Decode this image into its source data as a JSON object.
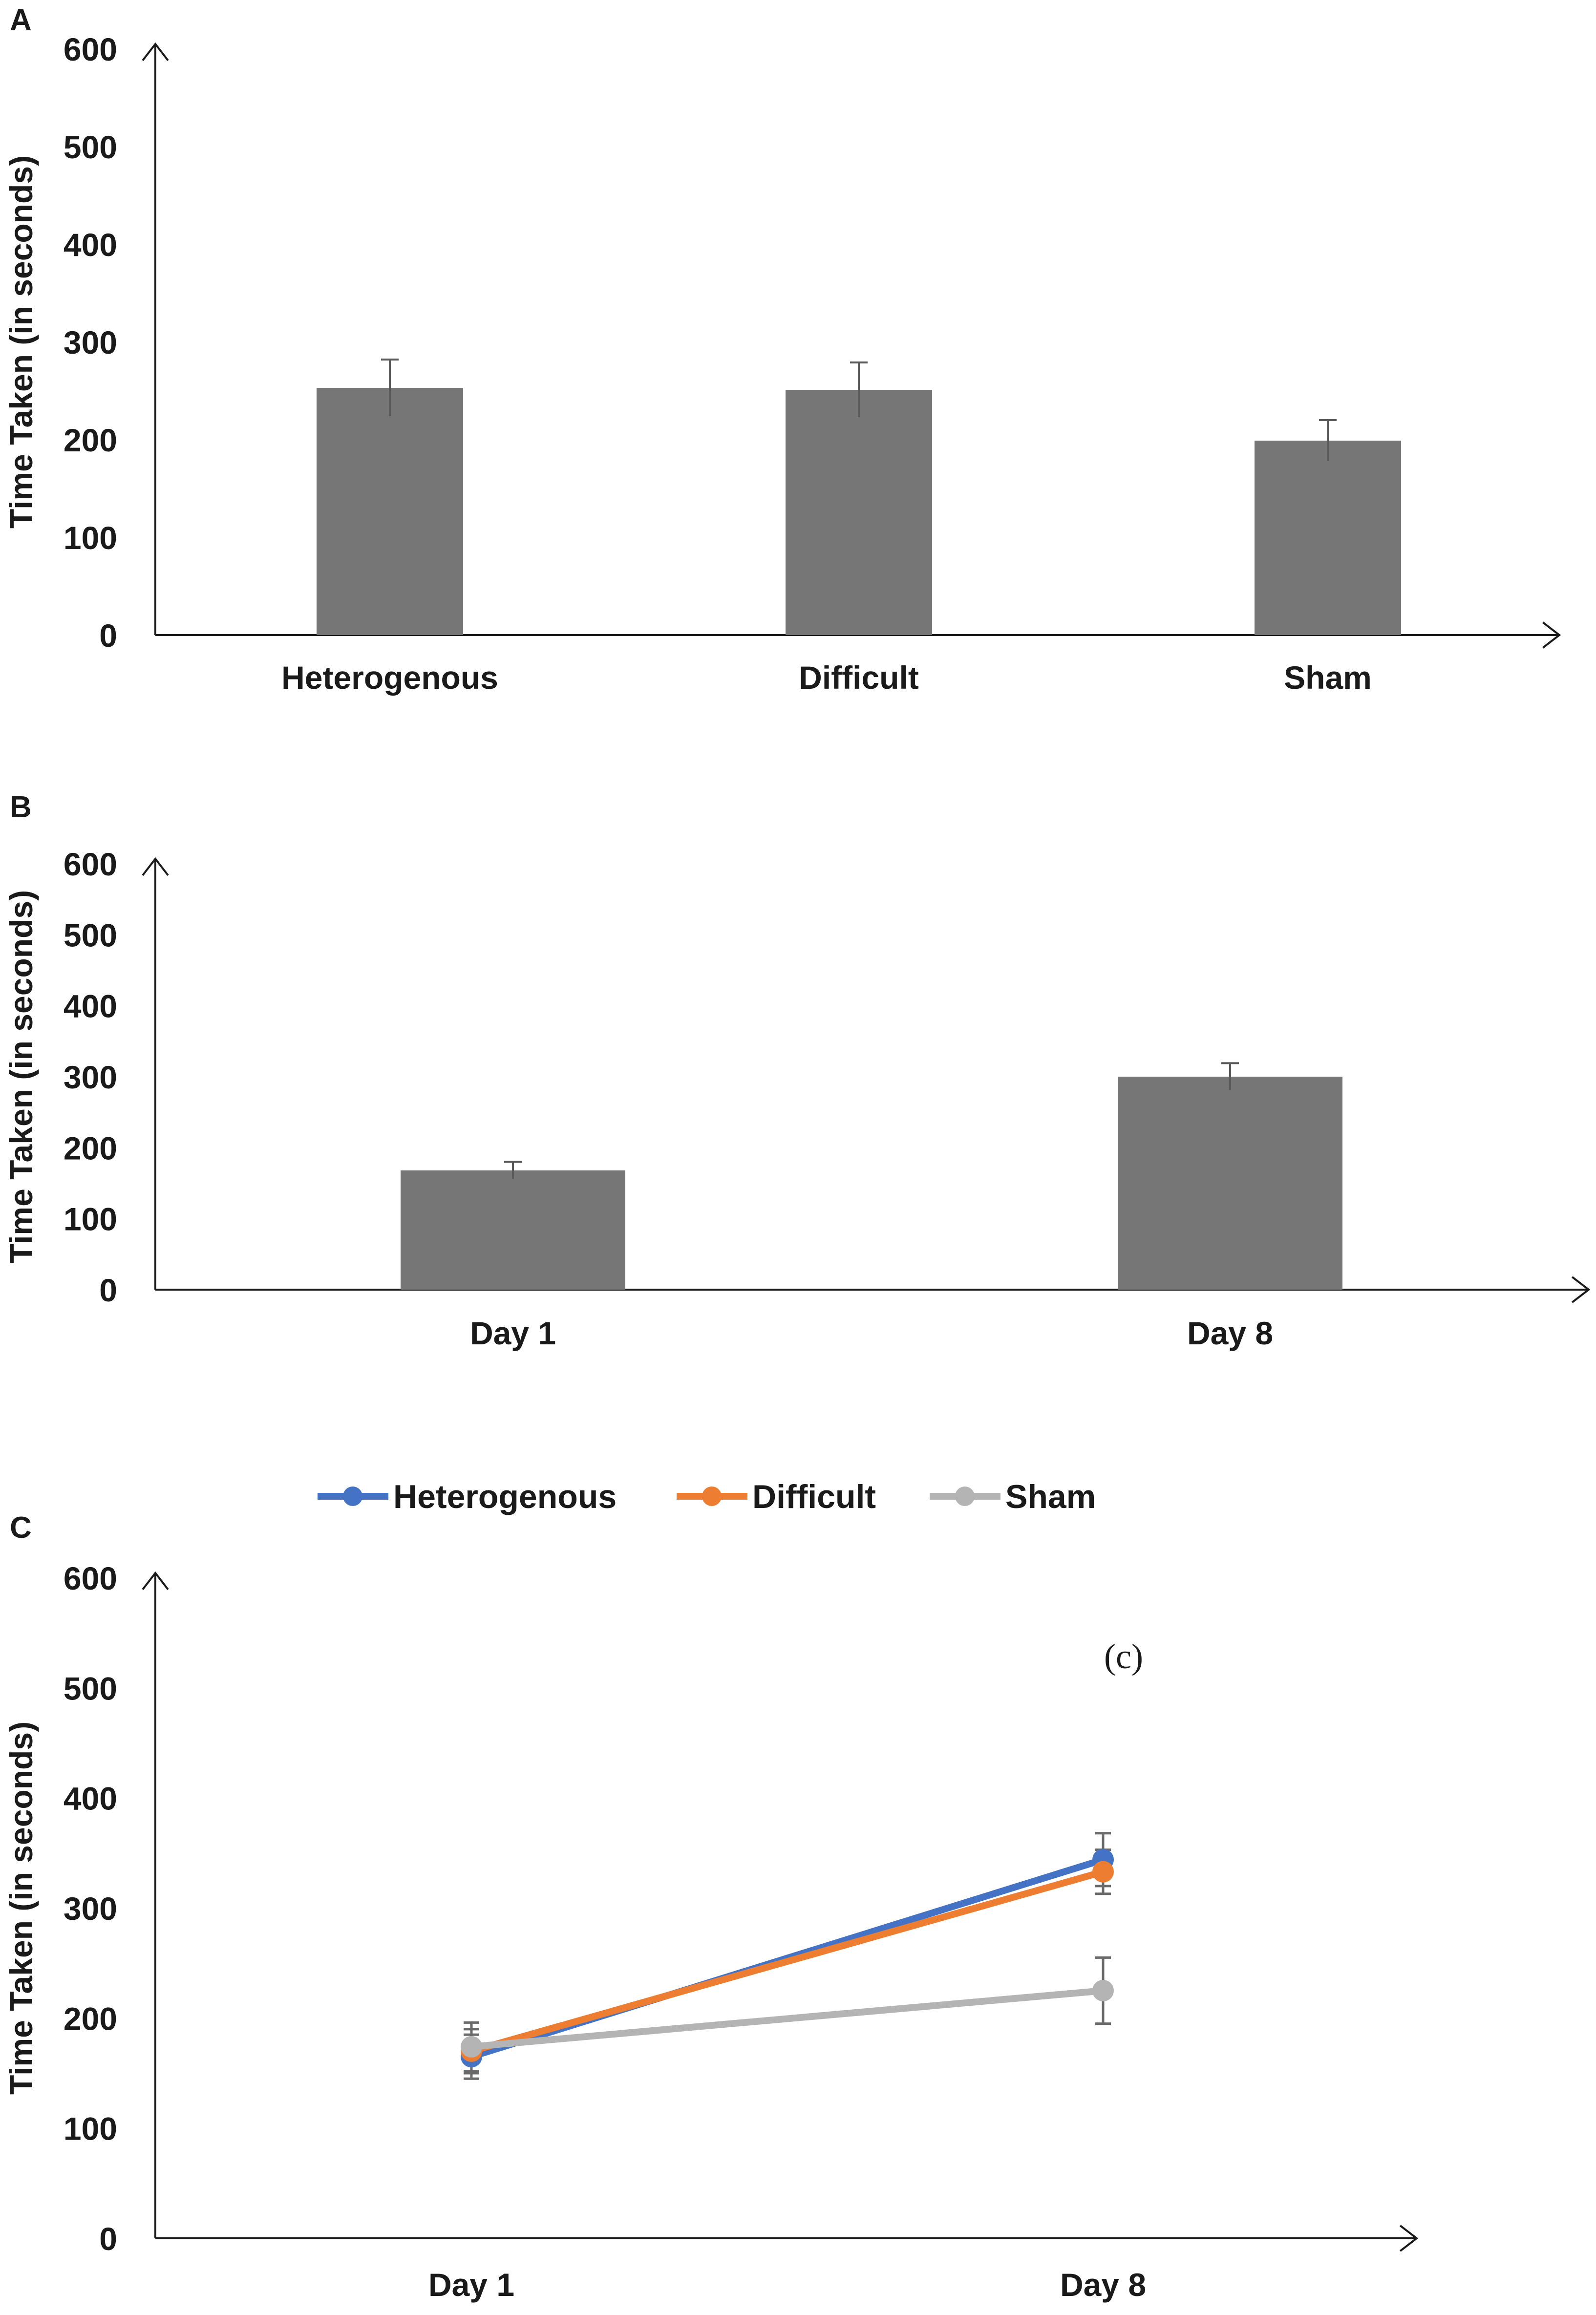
{
  "chart_data": [
    {
      "panel": "A",
      "type": "bar",
      "ylabel": "Time Taken (in seconds)",
      "ylim": [
        0,
        600
      ],
      "yticks": [
        0,
        100,
        200,
        300,
        400,
        500,
        600
      ],
      "categories": [
        "Heterogenous",
        "Difficult",
        "Sham"
      ],
      "values": [
        253,
        251,
        199
      ],
      "errors": [
        29,
        28,
        21
      ],
      "bar_color": "#767676"
    },
    {
      "panel": "B",
      "type": "bar",
      "ylabel": "Time Taken (in seconds)",
      "ylim": [
        0,
        600
      ],
      "yticks": [
        0,
        100,
        200,
        300,
        400,
        500,
        600
      ],
      "categories": [
        "Day 1",
        "Day 8"
      ],
      "values": [
        168,
        300
      ],
      "errors": [
        12,
        19
      ],
      "bar_color": "#767676"
    },
    {
      "panel": "C",
      "type": "line",
      "ylabel": "Time Taken (in seconds)",
      "ylim": [
        0,
        600
      ],
      "yticks": [
        0,
        100,
        200,
        300,
        400,
        500,
        600
      ],
      "categories": [
        "Day 1",
        "Day 8"
      ],
      "annotation": "(c)",
      "series": [
        {
          "name": "Heterogenous",
          "color": "#4472C4",
          "values": [
            165,
            344
          ],
          "errors": [
            20,
            24
          ]
        },
        {
          "name": "Difficult",
          "color": "#ED7D31",
          "values": [
            170,
            333
          ],
          "errors": [
            20,
            20
          ]
        },
        {
          "name": "Sham",
          "color": "#B4B4B4",
          "values": [
            174,
            225
          ],
          "errors": [
            22,
            30
          ]
        }
      ]
    }
  ]
}
